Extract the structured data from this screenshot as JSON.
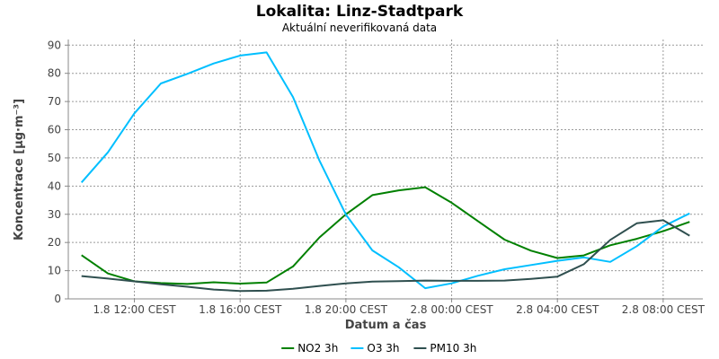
{
  "chart_data": {
    "type": "line",
    "title": "Lokalita: Linz-Stadtpark",
    "subtitle": "Aktuální neverifikovaná data",
    "xlabel": "Datum a čas",
    "ylabel": "Koncentrace [µg·m⁻³]",
    "ylim": [
      0,
      92
    ],
    "yticks": [
      0,
      10,
      20,
      30,
      40,
      50,
      60,
      70,
      80,
      90
    ],
    "x_hours": [
      10,
      11,
      12,
      13,
      14,
      15,
      16,
      17,
      18,
      19,
      20,
      21,
      22,
      23,
      24,
      25,
      26,
      27,
      28,
      29,
      30,
      31,
      32,
      33
    ],
    "xlim": [
      9.5,
      33.5
    ],
    "xticks": [
      {
        "hour": 12,
        "label": "1.8 12:00 CEST"
      },
      {
        "hour": 16,
        "label": "1.8 16:00 CEST"
      },
      {
        "hour": 20,
        "label": "1.8 20:00 CEST"
      },
      {
        "hour": 24,
        "label": "2.8 00:00 CEST"
      },
      {
        "hour": 28,
        "label": "2.8 04:00 CEST"
      },
      {
        "hour": 32,
        "label": "2.8 08:00 CEST"
      }
    ],
    "grid": true,
    "legend_position": "bottom",
    "series": [
      {
        "name": "NO2 3h",
        "color": "#008000",
        "values": [
          15.5,
          9,
          6.2,
          5.6,
          5.3,
          5.9,
          5.4,
          5.8,
          11.5,
          21.8,
          30,
          36.8,
          38.5,
          39.6,
          34.1,
          27.5,
          21,
          17.1,
          14.5,
          15.4,
          19,
          21.3,
          24,
          27.3
        ]
      },
      {
        "name": "O3 3h",
        "color": "#00bfff",
        "values": [
          41.3,
          52,
          65.8,
          76.4,
          79.8,
          83.5,
          86.3,
          87.4,
          71.6,
          49,
          29.9,
          17.2,
          11.2,
          3.8,
          5.5,
          8.2,
          10.5,
          12,
          13.5,
          14.7,
          13.1,
          18.7,
          25.7,
          30.3
        ]
      },
      {
        "name": "PM10 3h",
        "color": "#2f4f4f",
        "values": [
          8.1,
          7.2,
          6.2,
          5.2,
          4.3,
          3.3,
          2.8,
          2.9,
          3.6,
          4.6,
          5.5,
          6.1,
          6.3,
          6.5,
          6.4,
          6.4,
          6.5,
          7.1,
          7.9,
          12.3,
          20.9,
          26.8,
          27.9,
          22.4
        ]
      }
    ]
  }
}
